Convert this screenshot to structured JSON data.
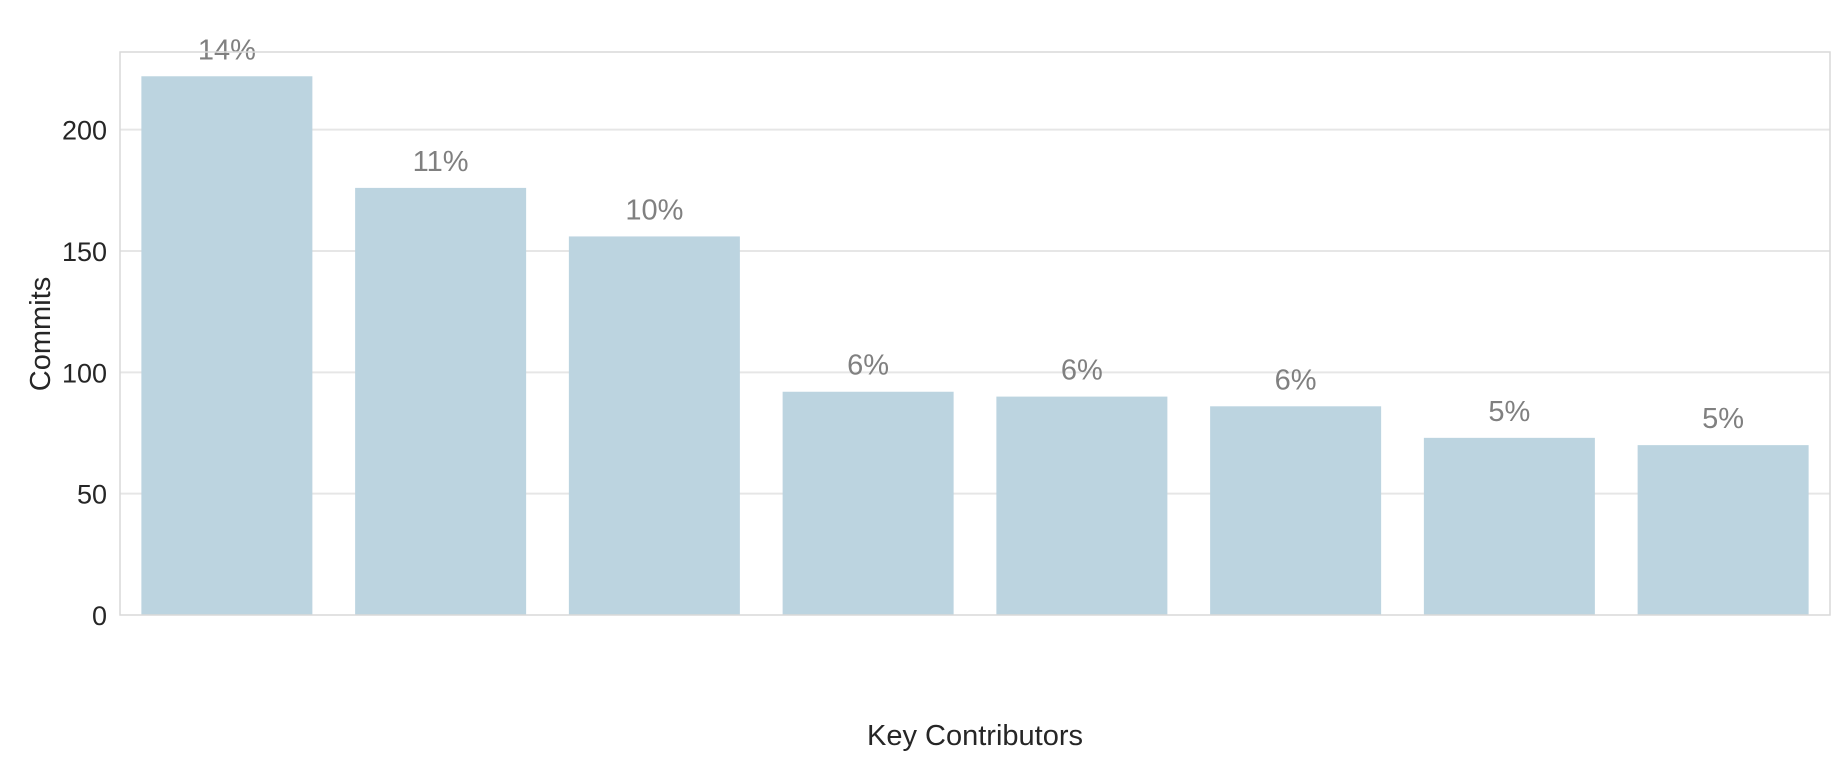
{
  "chart_data": {
    "type": "bar",
    "title": "",
    "xlabel": "Key Contributors",
    "ylabel": "Commits",
    "ylim": [
      0,
      232
    ],
    "yticks": [
      0,
      50,
      100,
      150,
      200
    ],
    "categories": [
      "",
      "",
      "",
      "",
      "",
      "",
      "",
      ""
    ],
    "values": [
      222,
      176,
      156,
      92,
      90,
      86,
      73,
      70
    ],
    "labels": [
      "14%",
      "11%",
      "10%",
      "6%",
      "6%",
      "6%",
      "5%",
      "5%"
    ],
    "grid": true,
    "bar_color": "#bcd4e0"
  }
}
